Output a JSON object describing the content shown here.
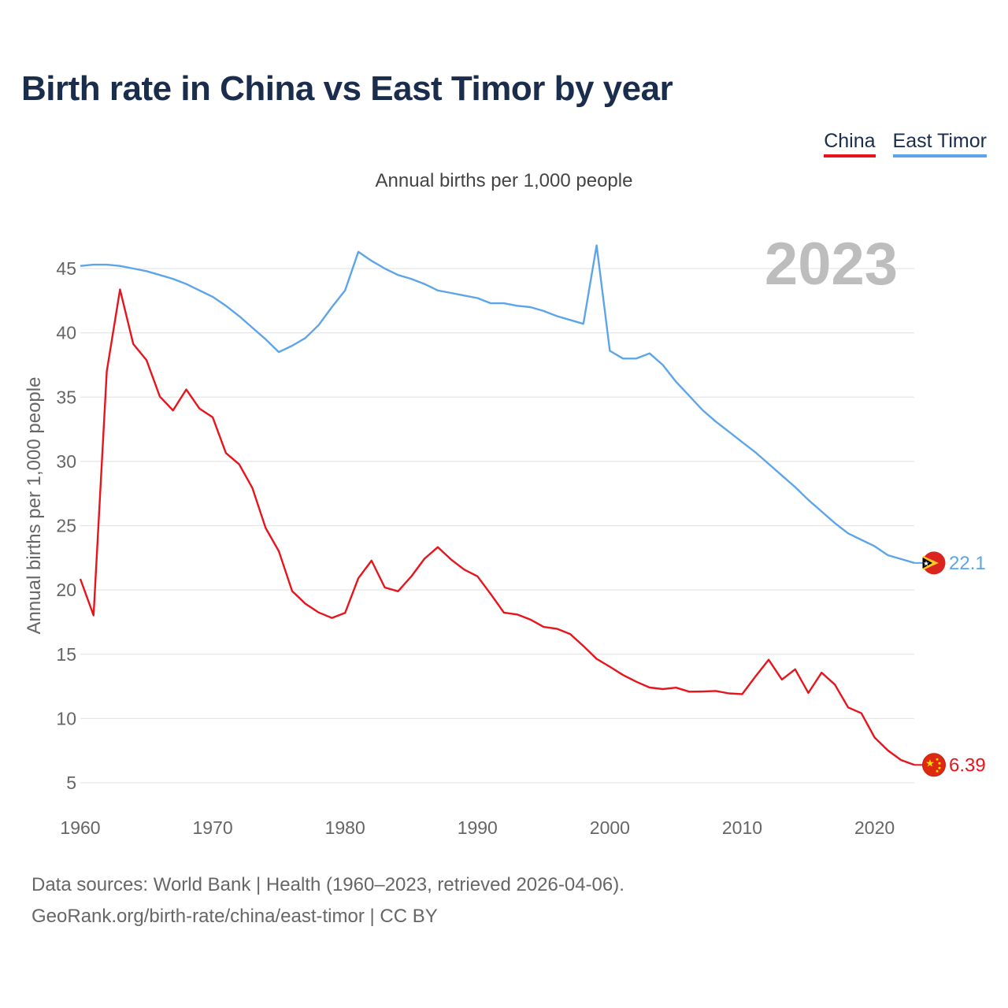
{
  "chart_data": {
    "type": "line",
    "title": "Birth rate in China vs East Timor by year",
    "subtitle": "Annual births per 1,000 people",
    "ylabel": "Annual births per 1,000 people",
    "xlabel": "",
    "xlim": [
      1960,
      2023
    ],
    "ylim": [
      3.5,
      48
    ],
    "x_ticks": [
      1960,
      1970,
      1980,
      1990,
      2000,
      2010,
      2020
    ],
    "y_ticks": [
      5,
      10,
      15,
      20,
      25,
      30,
      35,
      40,
      45
    ],
    "grid": true,
    "year_watermark": "2023",
    "x": [
      1960,
      1961,
      1962,
      1963,
      1964,
      1965,
      1966,
      1967,
      1968,
      1969,
      1970,
      1971,
      1972,
      1973,
      1974,
      1975,
      1976,
      1977,
      1978,
      1979,
      1980,
      1981,
      1982,
      1983,
      1984,
      1985,
      1986,
      1987,
      1988,
      1989,
      1990,
      1991,
      1992,
      1993,
      1994,
      1995,
      1996,
      1997,
      1998,
      1999,
      2000,
      2001,
      2002,
      2003,
      2004,
      2005,
      2006,
      2007,
      2008,
      2009,
      2010,
      2011,
      2012,
      2013,
      2014,
      2015,
      2016,
      2017,
      2018,
      2019,
      2020,
      2021,
      2022,
      2023
    ],
    "series": [
      {
        "name": "China",
        "color": "#e8141c",
        "end_label": "6.39",
        "flag": "china-flag-icon",
        "values": [
          20.86,
          18.02,
          37.01,
          43.37,
          39.14,
          37.88,
          35.05,
          33.96,
          35.59,
          34.11,
          33.43,
          30.65,
          29.77,
          27.93,
          24.82,
          23.01,
          19.91,
          18.93,
          18.25,
          17.82,
          18.21,
          20.91,
          22.28,
          20.19,
          19.9,
          21.04,
          22.43,
          23.33,
          22.37,
          21.58,
          21.06,
          19.68,
          18.24,
          18.09,
          17.7,
          17.12,
          16.98,
          16.57,
          15.64,
          14.64,
          14.03,
          13.38,
          12.86,
          12.41,
          12.29,
          12.4,
          12.09,
          12.1,
          12.14,
          11.95,
          11.9,
          13.27,
          14.57,
          13.03,
          13.83,
          11.99,
          13.57,
          12.64,
          10.86,
          10.41,
          8.52,
          7.52,
          6.77,
          6.39
        ]
      },
      {
        "name": "East Timor",
        "color": "#5da5e8",
        "end_label": "22.1",
        "flag": "east-timor-flag-icon",
        "values": [
          45.2,
          45.3,
          45.3,
          45.2,
          45.0,
          44.8,
          44.5,
          44.2,
          43.8,
          43.3,
          42.8,
          42.1,
          41.3,
          40.4,
          39.5,
          38.5,
          39.0,
          39.6,
          40.6,
          42.0,
          43.3,
          46.3,
          45.6,
          45.0,
          44.5,
          44.2,
          43.8,
          43.3,
          43.1,
          42.9,
          42.7,
          42.3,
          42.3,
          42.1,
          42.0,
          41.7,
          41.3,
          41.0,
          40.7,
          46.8,
          38.6,
          38.0,
          38.0,
          38.4,
          37.5,
          36.2,
          35.1,
          34.0,
          33.1,
          32.3,
          31.5,
          30.7,
          29.8,
          28.9,
          28.0,
          27.0,
          26.1,
          25.2,
          24.4,
          23.9,
          23.4,
          22.7,
          22.4,
          22.1
        ]
      }
    ]
  },
  "legend": {
    "items": [
      {
        "label": "China",
        "color": "#e8141c"
      },
      {
        "label": "East Timor",
        "color": "#5da5e8"
      }
    ]
  },
  "footer": {
    "line1": "Data sources: World Bank | Health (1960–2023, retrieved 2026-04-06).",
    "line2": "GeoRank.org/birth-rate/china/east-timor | CC BY"
  }
}
